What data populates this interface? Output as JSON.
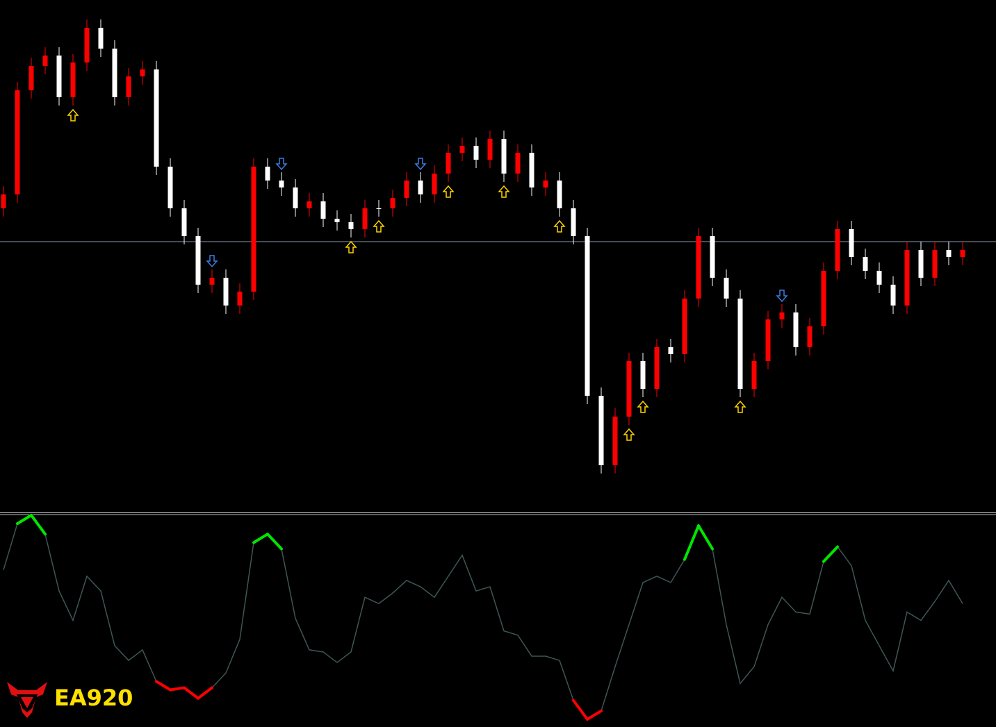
{
  "chart_data": [
    {
      "type": "candlestick",
      "open": [
        440,
        460,
        610,
        645,
        660,
        600,
        650,
        700,
        670,
        600,
        630,
        640,
        500,
        440,
        400,
        330,
        340,
        300,
        320,
        500,
        480,
        470,
        440,
        450,
        425,
        420,
        410,
        440,
        440,
        455,
        480,
        460,
        490,
        520,
        530,
        510,
        540,
        490,
        520,
        470,
        480,
        440,
        400,
        170,
        70,
        140,
        220,
        180,
        240,
        230,
        310,
        400,
        340,
        310,
        180,
        220,
        280,
        290,
        240,
        270,
        350,
        410,
        370,
        350,
        330,
        300,
        380,
        340,
        380,
        370
      ],
      "high": [
        472,
        622,
        657,
        672,
        672,
        662,
        712,
        712,
        682,
        642,
        652,
        652,
        512,
        452,
        412,
        352,
        352,
        332,
        512,
        512,
        492,
        482,
        462,
        462,
        437,
        432,
        452,
        452,
        467,
        492,
        492,
        502,
        532,
        542,
        542,
        552,
        552,
        532,
        532,
        492,
        492,
        452,
        412,
        182,
        152,
        232,
        232,
        252,
        252,
        322,
        412,
        412,
        352,
        322,
        232,
        292,
        302,
        302,
        282,
        362,
        422,
        422,
        382,
        362,
        342,
        392,
        392,
        392,
        392,
        392
      ],
      "low": [
        428,
        448,
        598,
        633,
        588,
        588,
        638,
        658,
        588,
        588,
        618,
        488,
        428,
        388,
        318,
        318,
        288,
        288,
        308,
        468,
        458,
        428,
        428,
        413,
        408,
        398,
        398,
        428,
        428,
        443,
        448,
        448,
        478,
        508,
        498,
        498,
        478,
        478,
        458,
        458,
        428,
        388,
        158,
        58,
        58,
        128,
        168,
        168,
        218,
        218,
        298,
        328,
        298,
        168,
        168,
        208,
        268,
        228,
        228,
        258,
        338,
        358,
        338,
        318,
        288,
        288,
        328,
        328,
        358,
        358
      ],
      "close": [
        460,
        610,
        645,
        660,
        600,
        650,
        700,
        670,
        600,
        630,
        640,
        500,
        440,
        400,
        330,
        340,
        300,
        320,
        500,
        480,
        470,
        440,
        450,
        425,
        420,
        410,
        440,
        440,
        455,
        480,
        460,
        490,
        520,
        530,
        510,
        540,
        490,
        520,
        470,
        480,
        440,
        400,
        170,
        70,
        140,
        220,
        180,
        240,
        230,
        310,
        400,
        340,
        310,
        180,
        220,
        280,
        290,
        240,
        270,
        350,
        410,
        370,
        350,
        330,
        300,
        380,
        340,
        380,
        370,
        380
      ],
      "ylim": [
        5,
        740
      ],
      "level": 392,
      "up_color": "#ff0000",
      "down_color": "#ffffff",
      "level_color": "#8a97a8",
      "signals": {
        "up": [
          5,
          25,
          27,
          32,
          36,
          40,
          45,
          46,
          53
        ],
        "down": [
          15,
          20,
          30,
          56
        ],
        "up_color": "#ffd400",
        "down_color": "#3a7de0"
      }
    },
    {
      "type": "line",
      "values": [
        74,
        96,
        100,
        91,
        64,
        50,
        71,
        64,
        38,
        31,
        36,
        21,
        17,
        18,
        13,
        18,
        25,
        41,
        87,
        91,
        84,
        51,
        36,
        35,
        30,
        35,
        61,
        58,
        63,
        69,
        66,
        61,
        71,
        81,
        64,
        66,
        45,
        43,
        33,
        33,
        31,
        12,
        3,
        7,
        28,
        48,
        68,
        71,
        68,
        79,
        95,
        84,
        48,
        20,
        28,
        48,
        61,
        54,
        53,
        78,
        85,
        76,
        50,
        38,
        26,
        54,
        50,
        59,
        69,
        58
      ],
      "ylim": [
        0,
        100
      ],
      "upper_level": 78,
      "lower_level": 22,
      "color": "#3e5656",
      "upper_color": "#00e600",
      "lower_color": "#ff0000"
    }
  ],
  "logo": "EA920"
}
